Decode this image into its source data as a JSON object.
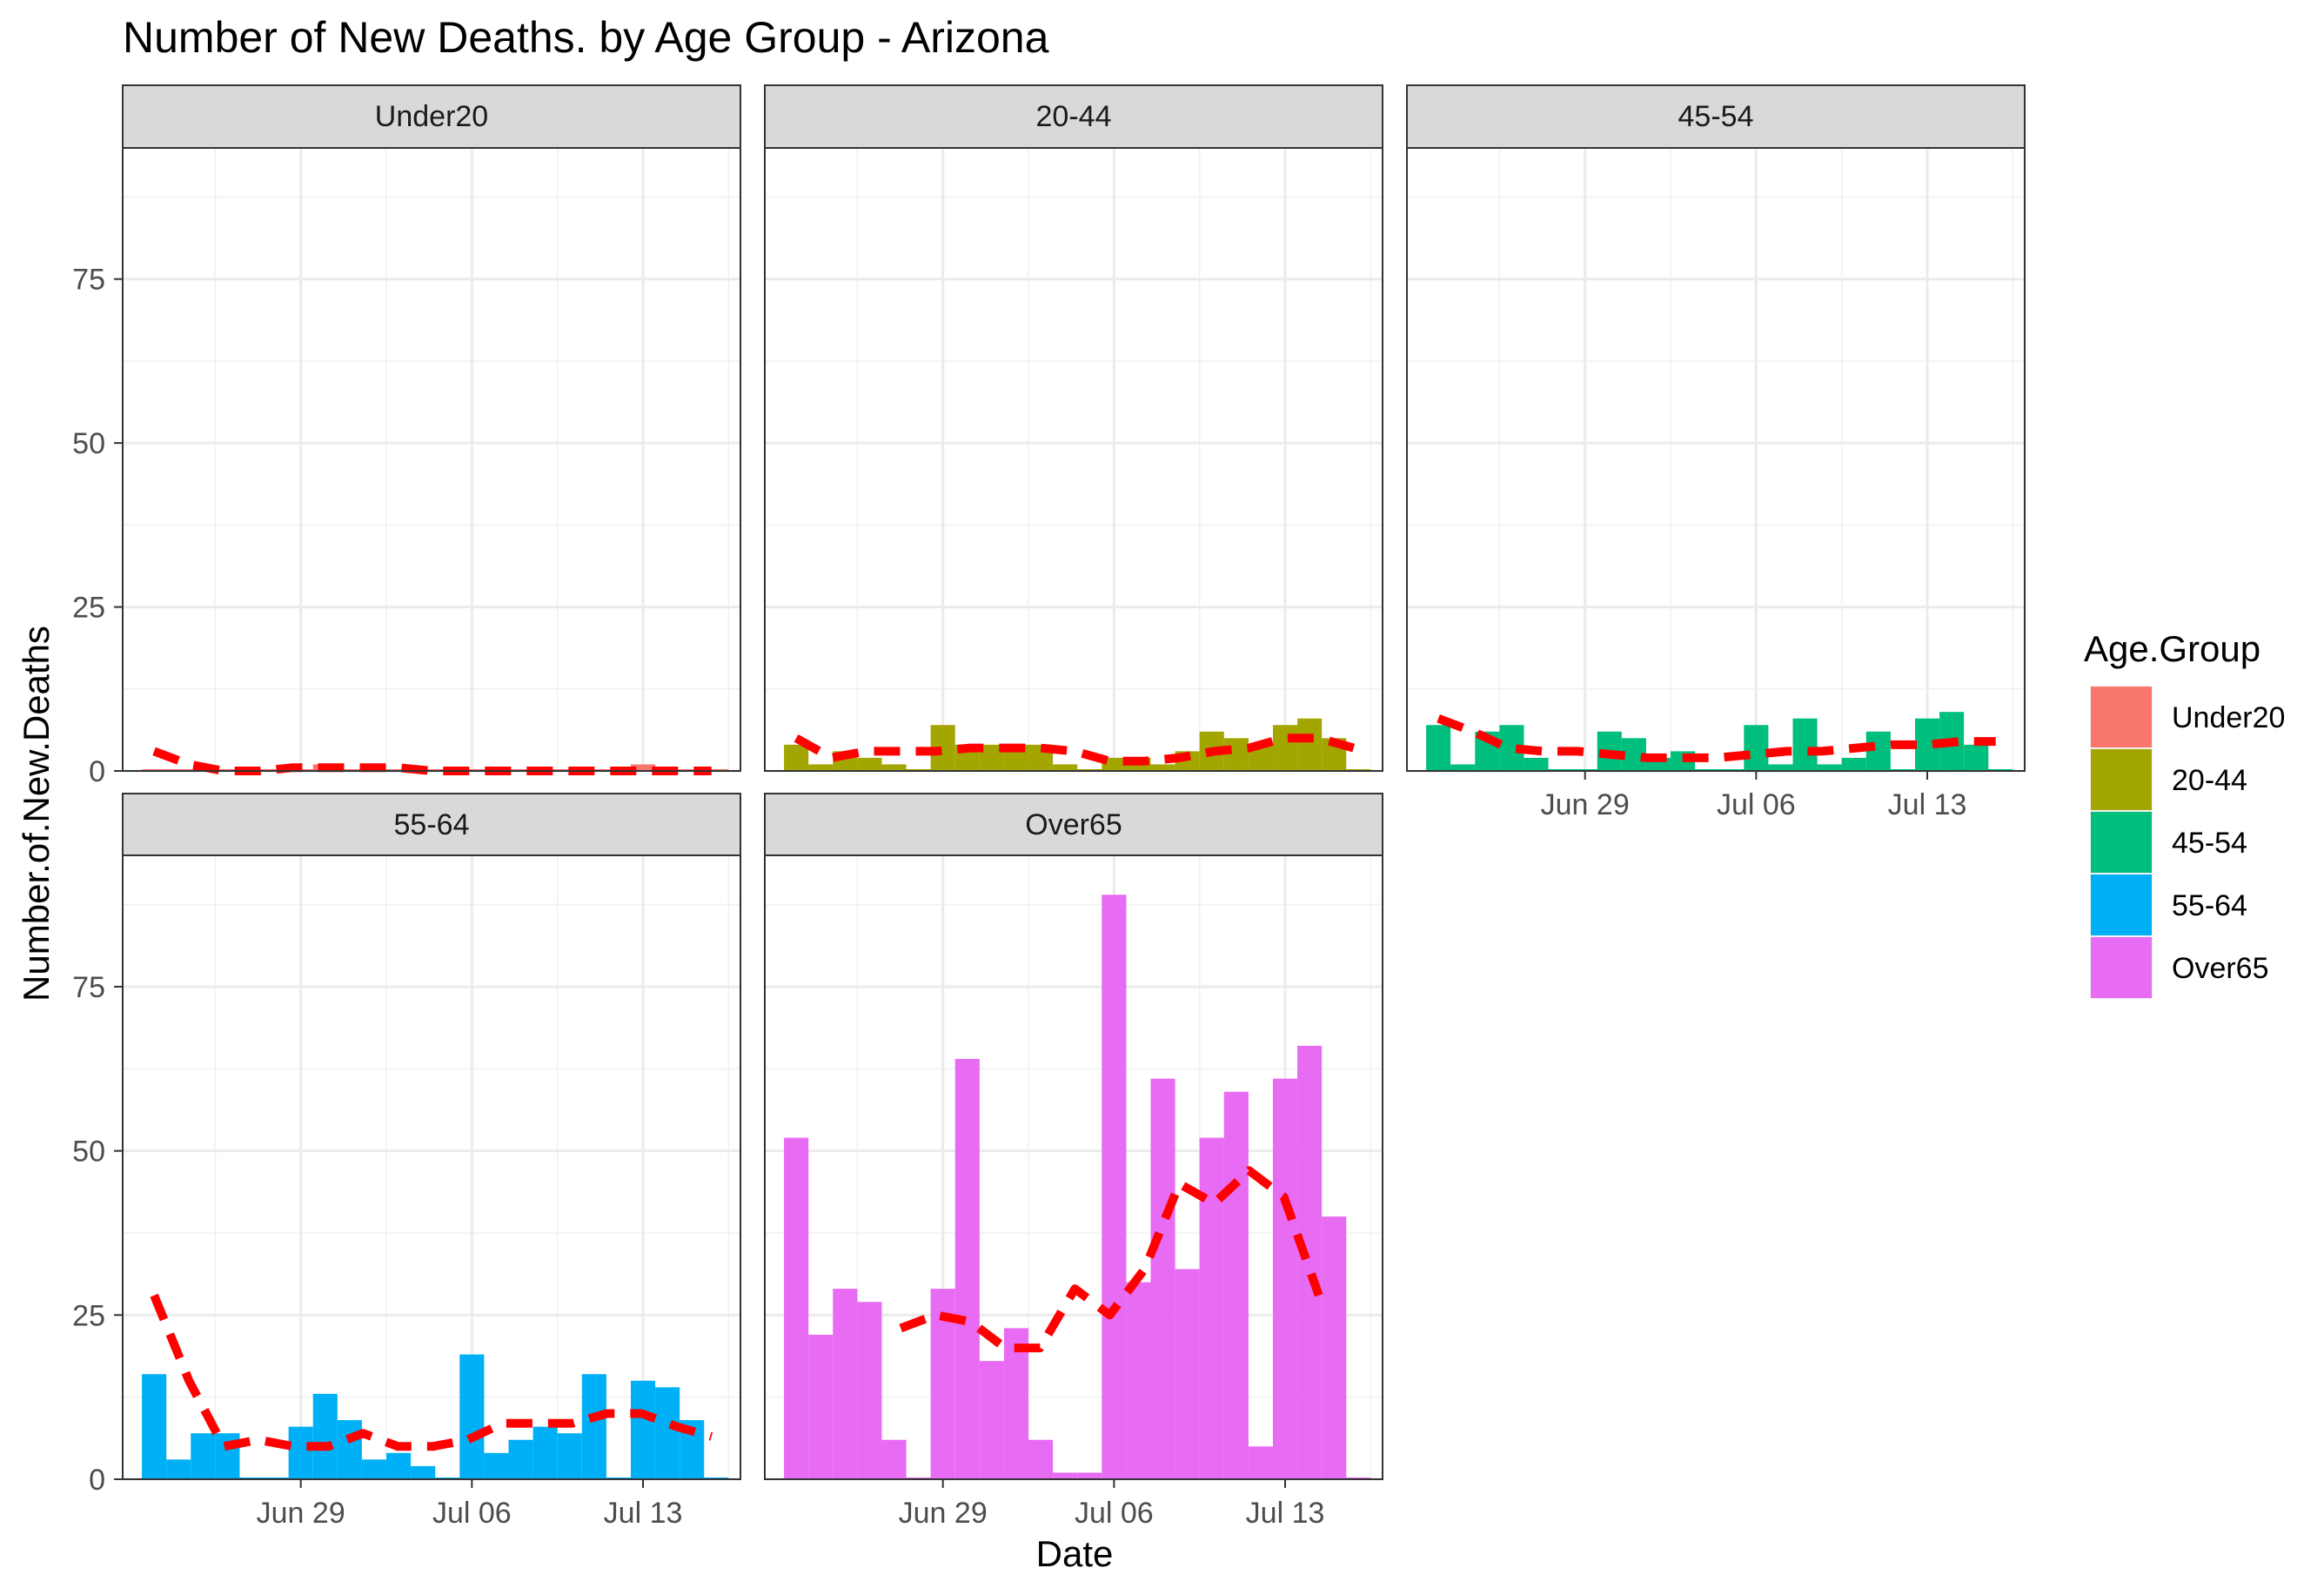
{
  "chart_data": {
    "type": "bar",
    "title": "Number of New Deaths. by Age Group - Arizona",
    "xlabel": "Date",
    "ylabel": "Number.of.New.Deaths",
    "ylim": [
      0,
      95
    ],
    "y_ticks": [
      0,
      25,
      50,
      75
    ],
    "x_ticks": [
      "Jun 29",
      "Jul 06",
      "Jul 13"
    ],
    "grid": true,
    "trend_line": {
      "style": "dashed",
      "color": "#ff0000"
    },
    "legend": {
      "title": "Age.Group",
      "position": "right"
    },
    "dates": [
      "2020-06-23",
      "2020-06-24",
      "2020-06-25",
      "2020-06-26",
      "2020-06-27",
      "2020-06-28",
      "2020-06-29",
      "2020-06-30",
      "2020-07-01",
      "2020-07-02",
      "2020-07-03",
      "2020-07-04",
      "2020-07-05",
      "2020-07-06",
      "2020-07-07",
      "2020-07-08",
      "2020-07-09",
      "2020-07-10",
      "2020-07-11",
      "2020-07-12",
      "2020-07-13",
      "2020-07-14",
      "2020-07-15",
      "2020-07-16"
    ],
    "series": [
      {
        "name": "Under20",
        "color": "#F8766D",
        "values": [
          0,
          0,
          0,
          0,
          0,
          0,
          0,
          1,
          0,
          0,
          0,
          0,
          0,
          0,
          0,
          0,
          0,
          0,
          0,
          0,
          1,
          0,
          0,
          0
        ],
        "trend": [
          3,
          1,
          0,
          0,
          0.5,
          0.5,
          0.5,
          0.5,
          0,
          0,
          0,
          0,
          0,
          0,
          0,
          0,
          0
        ]
      },
      {
        "name": "20-44",
        "color": "#A3A500",
        "values": [
          4,
          1,
          3,
          2,
          1,
          0,
          7,
          4,
          4,
          4,
          4,
          1,
          0,
          2,
          2,
          1,
          3,
          6,
          5,
          4,
          7,
          8,
          5,
          0
        ],
        "trend": [
          5,
          2,
          3,
          3,
          3,
          3.5,
          3.5,
          3.5,
          3,
          1.5,
          1.5,
          2,
          3,
          3.5,
          5,
          5,
          3.5
        ]
      },
      {
        "name": "45-54",
        "color": "#00BF7D",
        "values": [
          7,
          1,
          6,
          7,
          2,
          0,
          0,
          6,
          5,
          2,
          3,
          0,
          0,
          7,
          1,
          8,
          1,
          2,
          6,
          0,
          8,
          9,
          4,
          0
        ],
        "trend": [
          8,
          6,
          3.5,
          3,
          3,
          2.5,
          2,
          2,
          2,
          2.5,
          3,
          3,
          3.5,
          4,
          4,
          4.5,
          4.5
        ]
      },
      {
        "name": "55-64",
        "color": "#00B0F6",
        "values": [
          16,
          3,
          7,
          7,
          0,
          0,
          8,
          13,
          9,
          3,
          4,
          2,
          0,
          19,
          4,
          6,
          8,
          7,
          16,
          0,
          15,
          14,
          9,
          0
        ],
        "trend": [
          28,
          15,
          5,
          6,
          5,
          5,
          7,
          5,
          5,
          6,
          8.5,
          8.5,
          8.5,
          10,
          10,
          8,
          6.5
        ]
      },
      {
        "name": "Over65",
        "color": "#E76BF3",
        "values": [
          52,
          22,
          29,
          27,
          6,
          0,
          29,
          64,
          18,
          23,
          6,
          1,
          1,
          89,
          30,
          61,
          32,
          52,
          59,
          5,
          61,
          66,
          40,
          0
        ],
        "trend": [
          null,
          null,
          null,
          23,
          25,
          24,
          20,
          20,
          29,
          25,
          32,
          45,
          42,
          47,
          43,
          28,
          null
        ]
      }
    ]
  }
}
